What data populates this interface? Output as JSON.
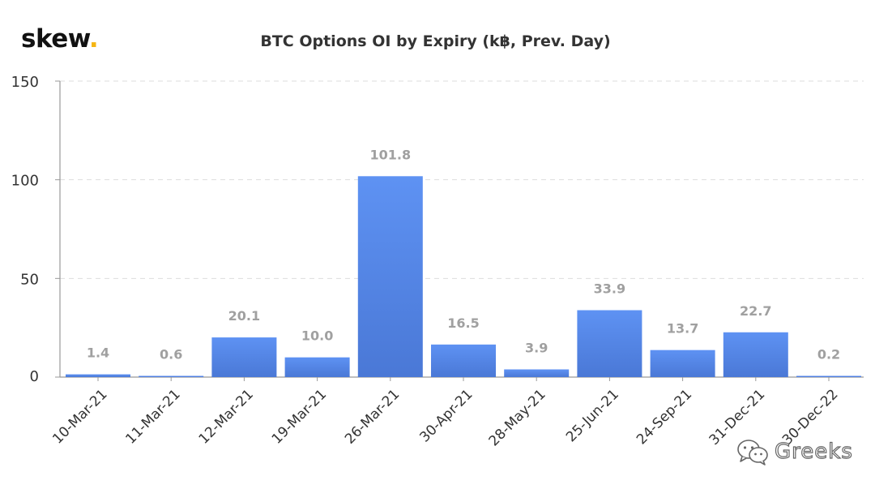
{
  "logo": {
    "text": "skew",
    "dot": ".",
    "dot_color": "#f5b512"
  },
  "watermark": {
    "text": "Greeks",
    "icon": "wechat-icon"
  },
  "chart_data": {
    "type": "bar",
    "title": "BTC Options OI by Expiry (k฿, Prev. Day)",
    "xlabel": "",
    "ylabel": "",
    "categories": [
      "10-Mar-21",
      "11-Mar-21",
      "12-Mar-21",
      "19-Mar-21",
      "26-Mar-21",
      "30-Apr-21",
      "28-May-21",
      "25-Jun-21",
      "24-Sep-21",
      "31-Dec-21",
      "30-Dec-22"
    ],
    "values": [
      1.4,
      0.6,
      20.1,
      10.0,
      101.8,
      16.5,
      3.9,
      33.9,
      13.7,
      22.7,
      0.2
    ],
    "data_labels": [
      "1.4",
      "0.6",
      "20.1",
      "10.0",
      "101.8",
      "16.5",
      "3.9",
      "33.9",
      "13.7",
      "22.7",
      "0.2"
    ],
    "ylim": [
      0,
      150
    ],
    "yticks": [
      0,
      50,
      100,
      150
    ],
    "grid": true,
    "bar_color": "#5b8def",
    "bar_color_bottom": "#4a7ad8",
    "label_color": "#a0a0a0",
    "grid_color": "#dddddd"
  }
}
